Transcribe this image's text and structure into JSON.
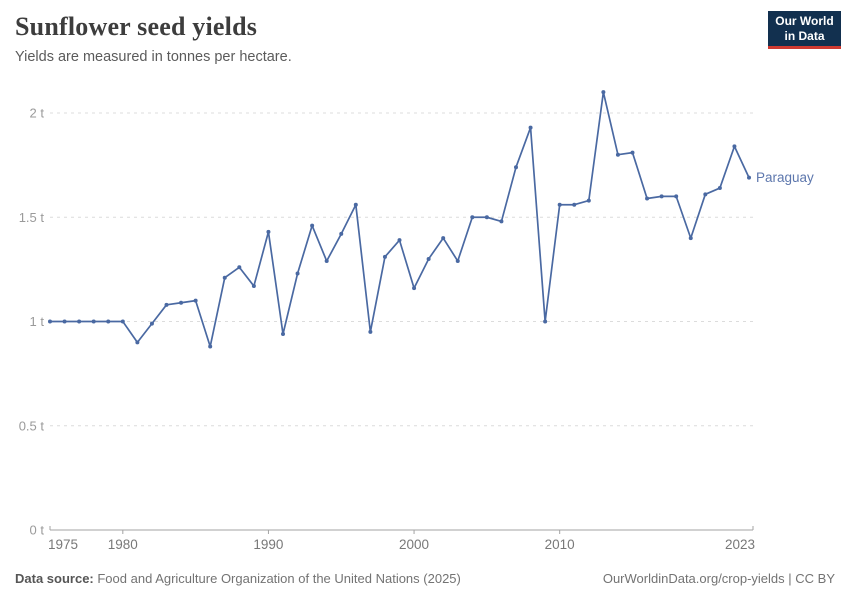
{
  "header": {
    "title": "Sunflower seed yields",
    "subtitle": "Yields are measured in tonnes per hectare."
  },
  "logo": {
    "line1": "Our World",
    "line2": "in Data",
    "bg_color": "#12304f",
    "accent_color": "#cf3a31"
  },
  "chart_data": {
    "type": "line",
    "title": "Sunflower seed yields",
    "ylabel": "tonnes per hectare",
    "unit_suffix": " t",
    "xlim": [
      1975,
      2023
    ],
    "ylim": [
      0,
      2.1
    ],
    "grid": "horizontal-dashed",
    "legend_position": "end-of-line-label",
    "colors": {
      "line": "#4a69a2",
      "entity_label": "#5d77ad",
      "gridline": "#dcdcdc",
      "axis": "#a3a3a3",
      "ytick_text": "#9a9a9a",
      "xtick_text": "#787878"
    },
    "yticks": [
      {
        "value": 0,
        "label": "0 t"
      },
      {
        "value": 0.5,
        "label": "0.5 t"
      },
      {
        "value": 1,
        "label": "1 t"
      },
      {
        "value": 1.5,
        "label": "1.5 t"
      },
      {
        "value": 2,
        "label": "2 t"
      }
    ],
    "xticks": [
      1975,
      1980,
      1990,
      2000,
      2010,
      2023
    ],
    "series": [
      {
        "name": "Paraguay",
        "x": [
          1975,
          1976,
          1977,
          1978,
          1979,
          1980,
          1981,
          1982,
          1983,
          1984,
          1985,
          1986,
          1987,
          1988,
          1989,
          1990,
          1991,
          1992,
          1993,
          1994,
          1995,
          1996,
          1997,
          1998,
          1999,
          2000,
          2001,
          2002,
          2003,
          2004,
          2005,
          2006,
          2007,
          2008,
          2009,
          2010,
          2011,
          2012,
          2013,
          2014,
          2015,
          2016,
          2017,
          2018,
          2019,
          2020,
          2021,
          2022,
          2023
        ],
        "values": [
          1.0,
          1.0,
          1.0,
          1.0,
          1.0,
          1.0,
          0.9,
          0.99,
          1.08,
          1.09,
          1.1,
          0.88,
          1.21,
          1.26,
          1.17,
          1.43,
          0.94,
          1.23,
          1.46,
          1.29,
          1.42,
          1.56,
          0.95,
          1.31,
          1.39,
          1.16,
          1.3,
          1.4,
          1.29,
          1.5,
          1.5,
          1.48,
          1.74,
          1.93,
          1.0,
          1.56,
          1.56,
          1.58,
          2.1,
          1.8,
          1.81,
          1.59,
          1.6,
          1.6,
          1.4,
          1.61,
          1.64,
          1.84,
          1.69
        ]
      }
    ]
  },
  "footer": {
    "source_label": "Data source:",
    "source_text": " Food and Agriculture Organization of the United Nations (2025)",
    "link_text": "OurWorldinData.org/crop-yields | CC BY"
  }
}
